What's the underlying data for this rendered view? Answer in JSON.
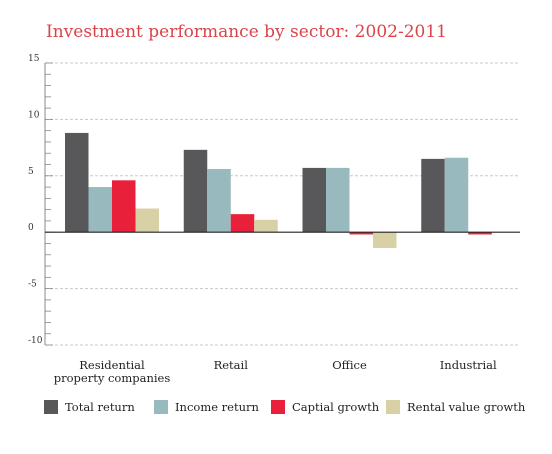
{
  "chart_data": {
    "type": "bar",
    "title": "Investment performance by sector: 2002-2011",
    "xlabel": "",
    "ylabel": "",
    "ylim": [
      -10,
      15
    ],
    "yticks": [
      15,
      10,
      5,
      0,
      -5,
      -10
    ],
    "grid": true,
    "legend_position": "bottom",
    "categories": [
      "Residential property companies",
      "Retail",
      "Office",
      "Industrial"
    ],
    "category_lines": [
      [
        "Residential",
        "property companies"
      ],
      [
        "Retail"
      ],
      [
        "Office"
      ],
      [
        "Industrial"
      ]
    ],
    "series": [
      {
        "name": "Total return",
        "color": "#58585a",
        "values": [
          8.8,
          7.3,
          5.7,
          6.5
        ]
      },
      {
        "name": "Income return",
        "color": "#98b9bd",
        "values": [
          4.0,
          5.6,
          5.7,
          6.6
        ]
      },
      {
        "name": "Captial growth",
        "color": "#e8203a",
        "values": [
          4.6,
          1.6,
          -0.2,
          -0.2
        ]
      },
      {
        "name": "Rental value growth",
        "color": "#d8d1a6",
        "values": [
          2.1,
          1.1,
          -1.4,
          0.0
        ]
      }
    ]
  }
}
